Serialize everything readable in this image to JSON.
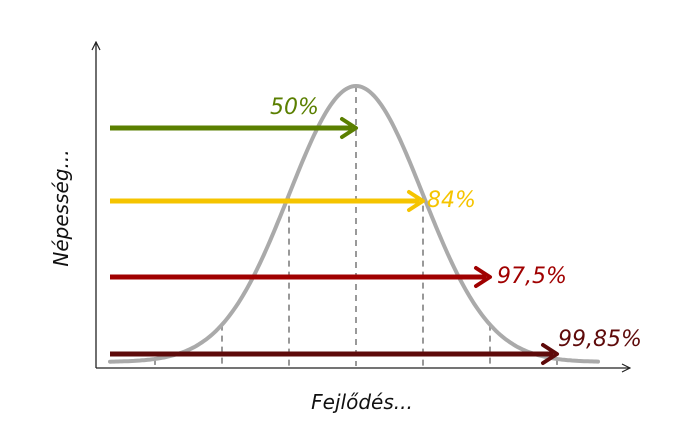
{
  "axes": {
    "x_label": "Fejlődés...",
    "y_label": "Népesség..."
  },
  "arrows": [
    {
      "label": "50%",
      "color": "#5a7f00",
      "threshold": "mean"
    },
    {
      "label": "84%",
      "color": "#f5c400",
      "threshold": "+1σ"
    },
    {
      "label": "97,5%",
      "color": "#a00000",
      "threshold": "+2σ"
    },
    {
      "label": "99,85%",
      "color": "#5e0a0a",
      "threshold": "+3σ"
    }
  ],
  "curve": {
    "color": "#aaaaaa",
    "type": "normal"
  }
}
